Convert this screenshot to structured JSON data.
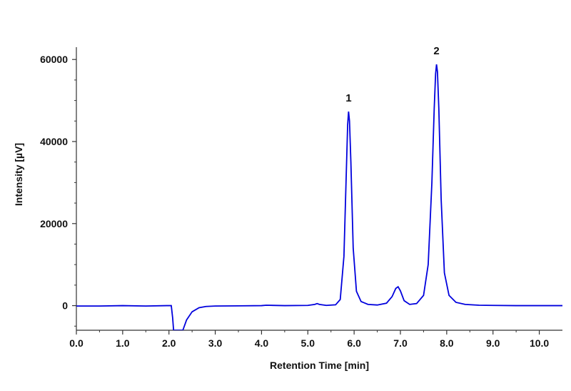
{
  "chart_data": {
    "type": "line",
    "title": "",
    "xlabel": "Retention Time [min]",
    "ylabel": "Intensity [µV]",
    "xlim": [
      0.0,
      10.5
    ],
    "ylim": [
      -6000,
      63000
    ],
    "x_ticks": [
      0.0,
      1.0,
      2.0,
      3.0,
      4.0,
      5.0,
      6.0,
      7.0,
      8.0,
      9.0,
      10.0
    ],
    "x_tick_labels": [
      "0.0",
      "1.0",
      "2.0",
      "3.0",
      "4.0",
      "5.0",
      "6.0",
      "7.0",
      "8.0",
      "9.0",
      "10.0"
    ],
    "y_ticks": [
      0,
      20000,
      40000,
      60000
    ],
    "y_tick_labels": [
      "0",
      "20000",
      "40000",
      "60000"
    ],
    "grid": false,
    "line_color": "#0000dd",
    "peak_labels": [
      {
        "text": "1",
        "x": 5.88,
        "y": 47300
      },
      {
        "text": "2",
        "x": 7.78,
        "y": 58800
      }
    ],
    "series": [
      {
        "x": [
          0.0,
          0.5,
          1.0,
          1.5,
          1.95,
          2.05,
          2.08,
          2.1,
          2.3,
          2.38,
          2.5,
          2.65,
          2.8,
          3.0,
          3.5,
          4.0,
          4.1,
          4.5,
          5.0,
          5.15,
          5.2,
          5.25,
          5.4,
          5.6,
          5.7,
          5.78,
          5.83,
          5.86,
          5.88,
          5.9,
          5.93,
          5.98,
          6.05,
          6.15,
          6.3,
          6.5,
          6.7,
          6.82,
          6.9,
          6.95,
          7.0,
          7.08,
          7.2,
          7.35,
          7.5,
          7.6,
          7.68,
          7.73,
          7.76,
          7.78,
          7.8,
          7.83,
          7.88,
          7.95,
          8.05,
          8.2,
          8.4,
          8.7,
          9.0,
          9.5,
          10.0,
          10.5
        ],
        "y": [
          -100,
          -100,
          0,
          -100,
          0,
          0,
          -3000,
          -6000,
          -6000,
          -3500,
          -1500,
          -500,
          -200,
          -100,
          -50,
          0,
          100,
          0,
          50,
          300,
          500,
          300,
          50,
          200,
          1500,
          12000,
          32000,
          44000,
          47300,
          45000,
          35000,
          14000,
          3500,
          1000,
          300,
          150,
          600,
          2200,
          4200,
          4600,
          3600,
          1200,
          300,
          500,
          2500,
          10000,
          30000,
          48000,
          56500,
          58800,
          57000,
          48000,
          26000,
          8000,
          2500,
          800,
          300,
          100,
          50,
          0,
          0,
          0
        ]
      }
    ]
  }
}
